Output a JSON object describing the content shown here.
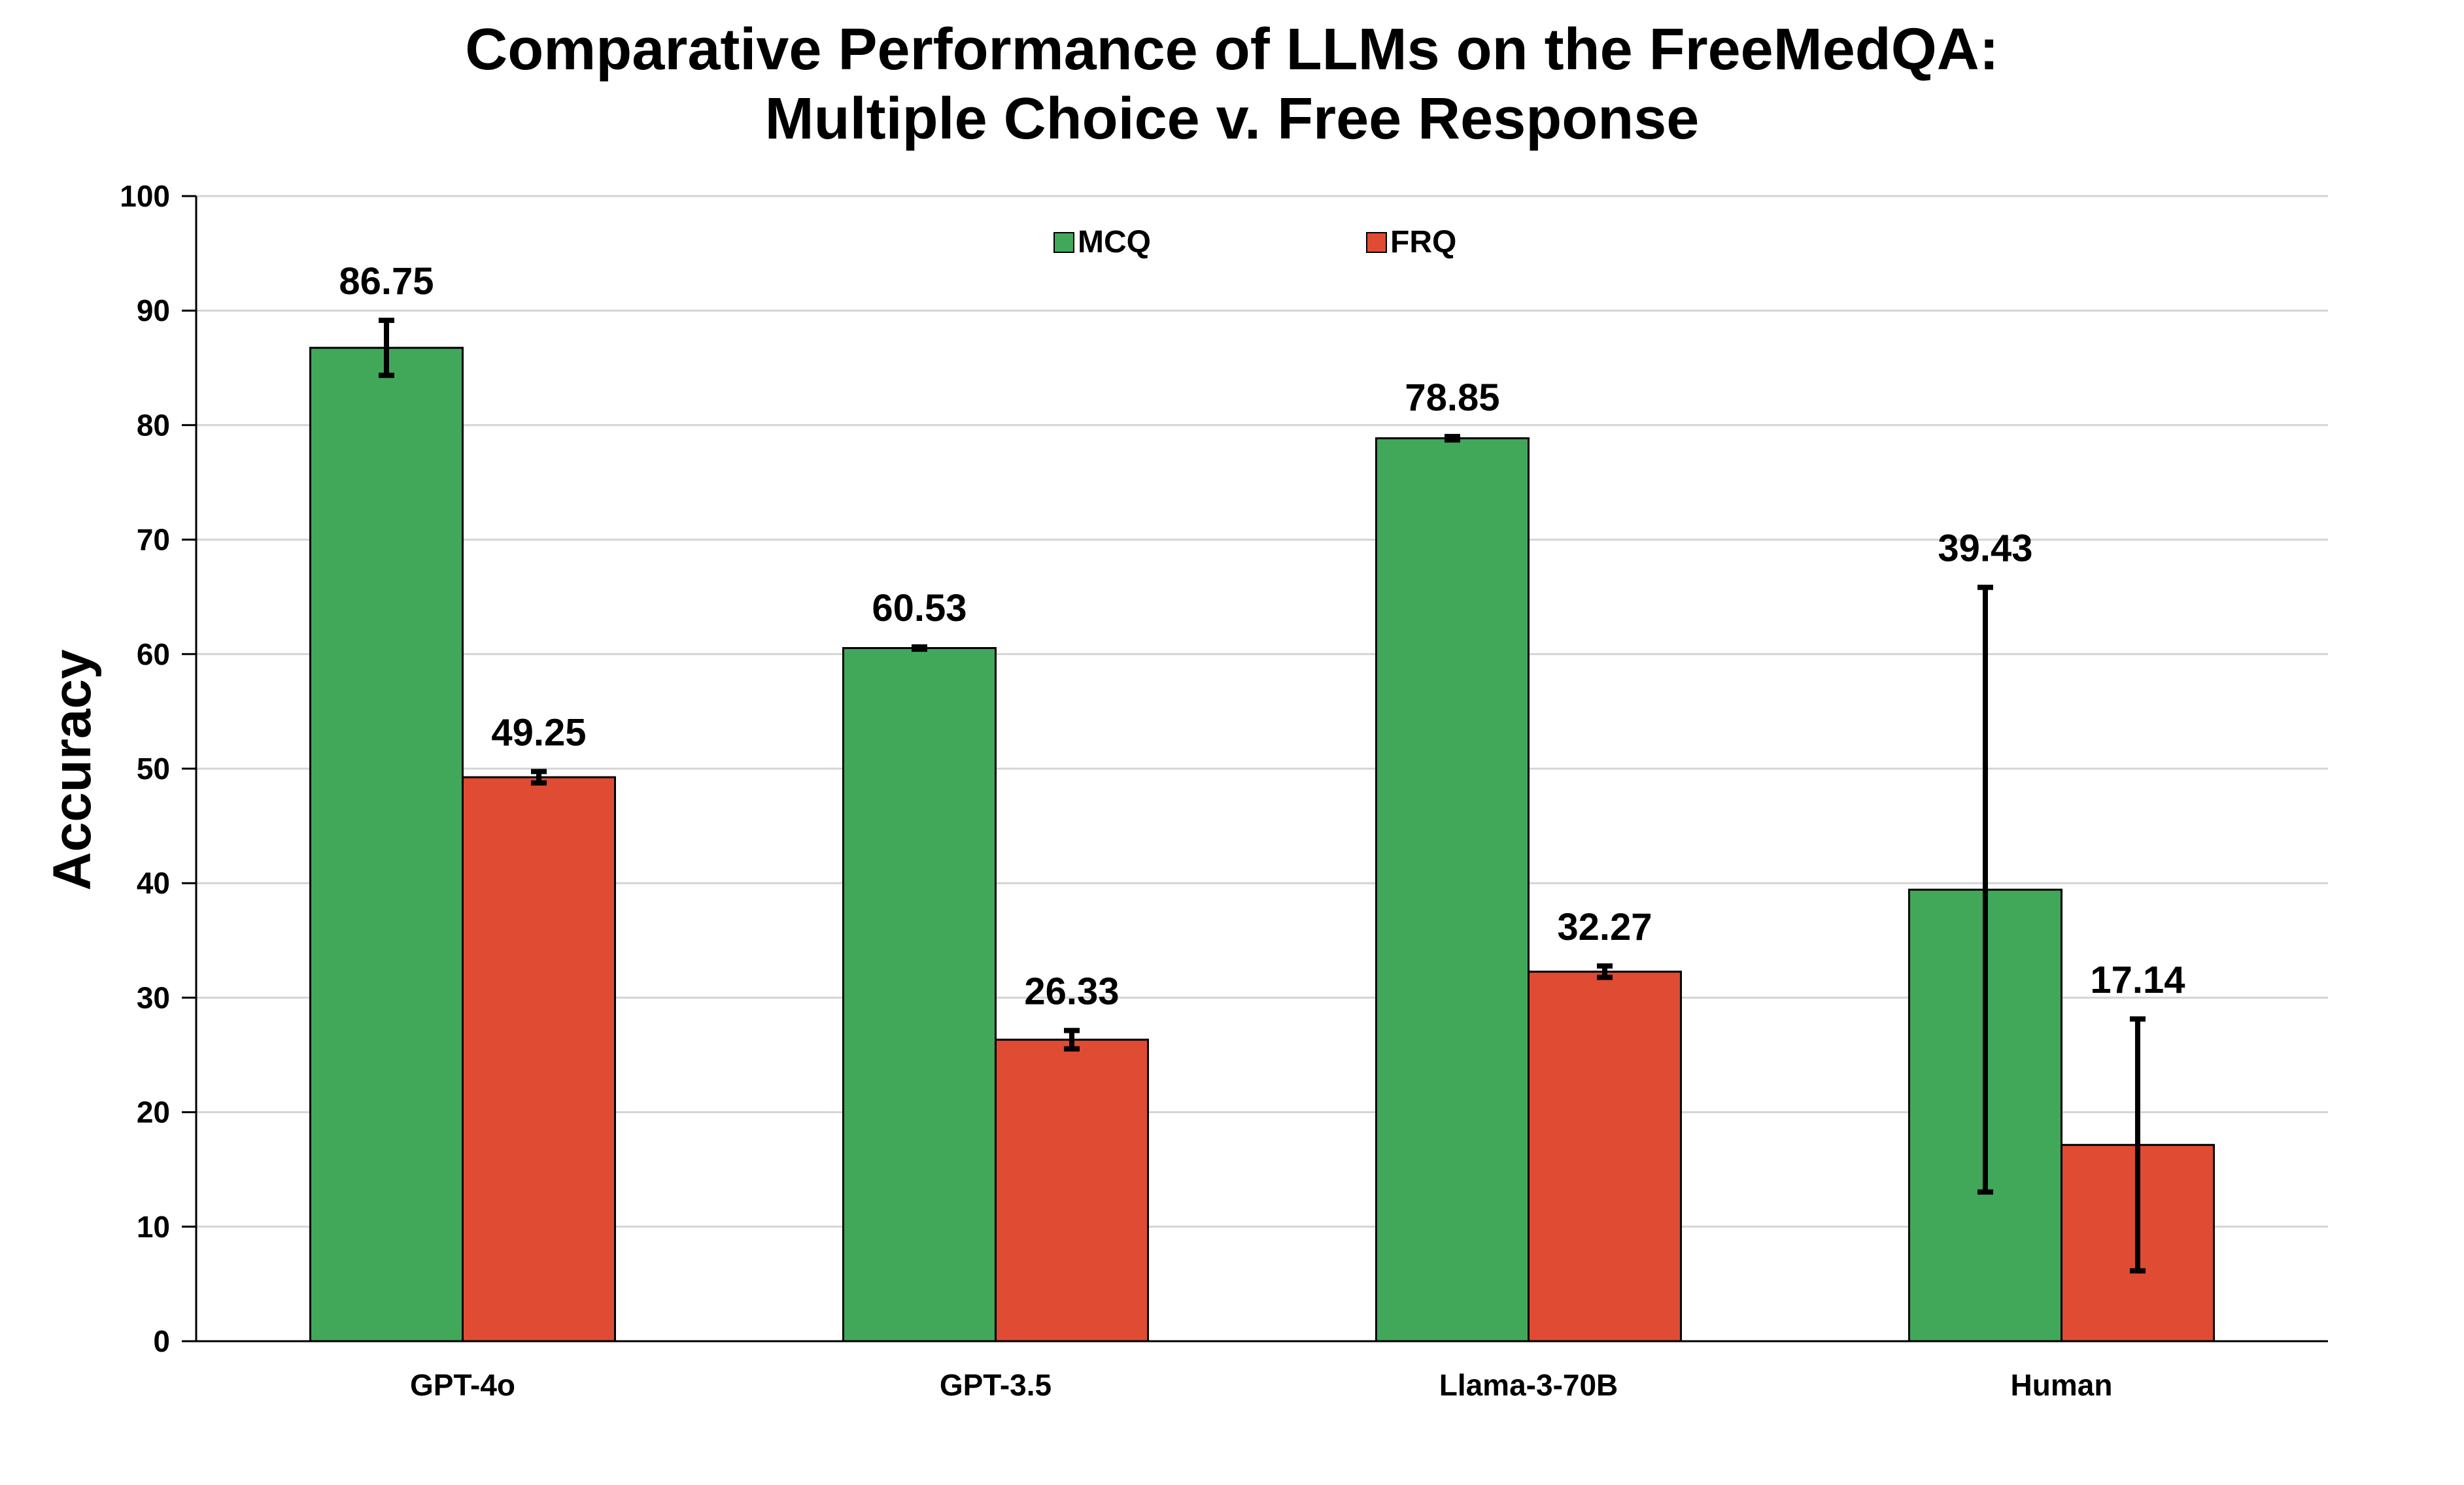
{
  "chart_data": {
    "type": "bar",
    "title": [
      "Comparative Performance of LLMs on the FreeMedQA:",
      "Multiple Choice v. Free Response"
    ],
    "xlabel": "",
    "ylabel": "Accuracy",
    "ylim": [
      0,
      100
    ],
    "yticks": [
      0,
      10,
      20,
      30,
      40,
      50,
      60,
      70,
      80,
      90,
      100
    ],
    "grid": true,
    "legend_position": "top-center",
    "categories": [
      "GPT-4o",
      "GPT-3.5",
      "Llama-3-70B",
      "Human"
    ],
    "series": [
      {
        "name": "MCQ",
        "color": "#41A85A",
        "values": [
          86.75,
          60.53,
          78.85,
          39.43
        ],
        "labels": [
          "86.75",
          "60.53",
          "78.85",
          "39.43"
        ],
        "error": [
          2.4,
          0.1,
          0.15,
          26.4
        ]
      },
      {
        "name": "FRQ",
        "color": "#E04B33",
        "values": [
          49.25,
          26.33,
          32.27,
          17.14
        ],
        "labels": [
          "49.25",
          "26.33",
          "32.27",
          "17.14"
        ],
        "error": [
          0.5,
          0.8,
          0.5,
          11.0
        ]
      }
    ]
  }
}
